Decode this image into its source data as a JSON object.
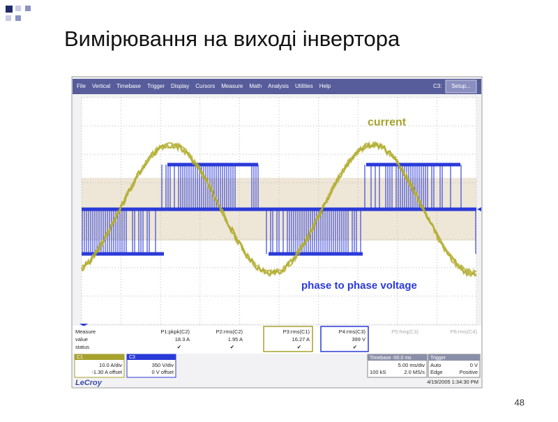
{
  "slide": {
    "title": "Вимірювання на виході інвертора",
    "page_number": "48"
  },
  "scope": {
    "menu": [
      "File",
      "Vertical",
      "Timebase",
      "Trigger",
      "Display",
      "Cursors",
      "Measure",
      "Math",
      "Analysis",
      "Utilities",
      "Help"
    ],
    "channel_label": "C3:",
    "setup_button": "Setup...",
    "annotations": {
      "current": "current",
      "voltage": "phase to phase voltage"
    },
    "measure": {
      "row_labels": [
        "Measure",
        "value",
        "status"
      ],
      "params": [
        {
          "name": "P1:pkpk(C2)",
          "value": "18.3 A",
          "status": "✔"
        },
        {
          "name": "P2:rms(C2)",
          "value": "1.95 A",
          "status": "✔"
        },
        {
          "name": "P3:rms(C1)",
          "value": "16.27 A",
          "status": "✔"
        },
        {
          "name": "P4:rms(C3)",
          "value": "399 V",
          "status": "✔"
        },
        {
          "name": "P5:freq(C3)"
        },
        {
          "name": "P6:rms(C4)"
        }
      ]
    },
    "channels": [
      {
        "name": "C1",
        "scale": "10.0 A/div",
        "offset": "-1.30 A offset"
      },
      {
        "name": "C3",
        "scale": "350 V/div",
        "offset": "0 V offset"
      }
    ],
    "timebase": {
      "label": "Timebase -50.0 ms",
      "scale": "5.00 ms/div",
      "samples": "100 kS",
      "rate": "2.0 MS/s"
    },
    "trigger": {
      "label": "Trigger",
      "mode": "Auto",
      "level": "0 V",
      "type": "Edge",
      "slope": "Positive"
    },
    "timestamp": "4/19/2005 1:34:30 PM",
    "brand": "LeCroy"
  }
}
